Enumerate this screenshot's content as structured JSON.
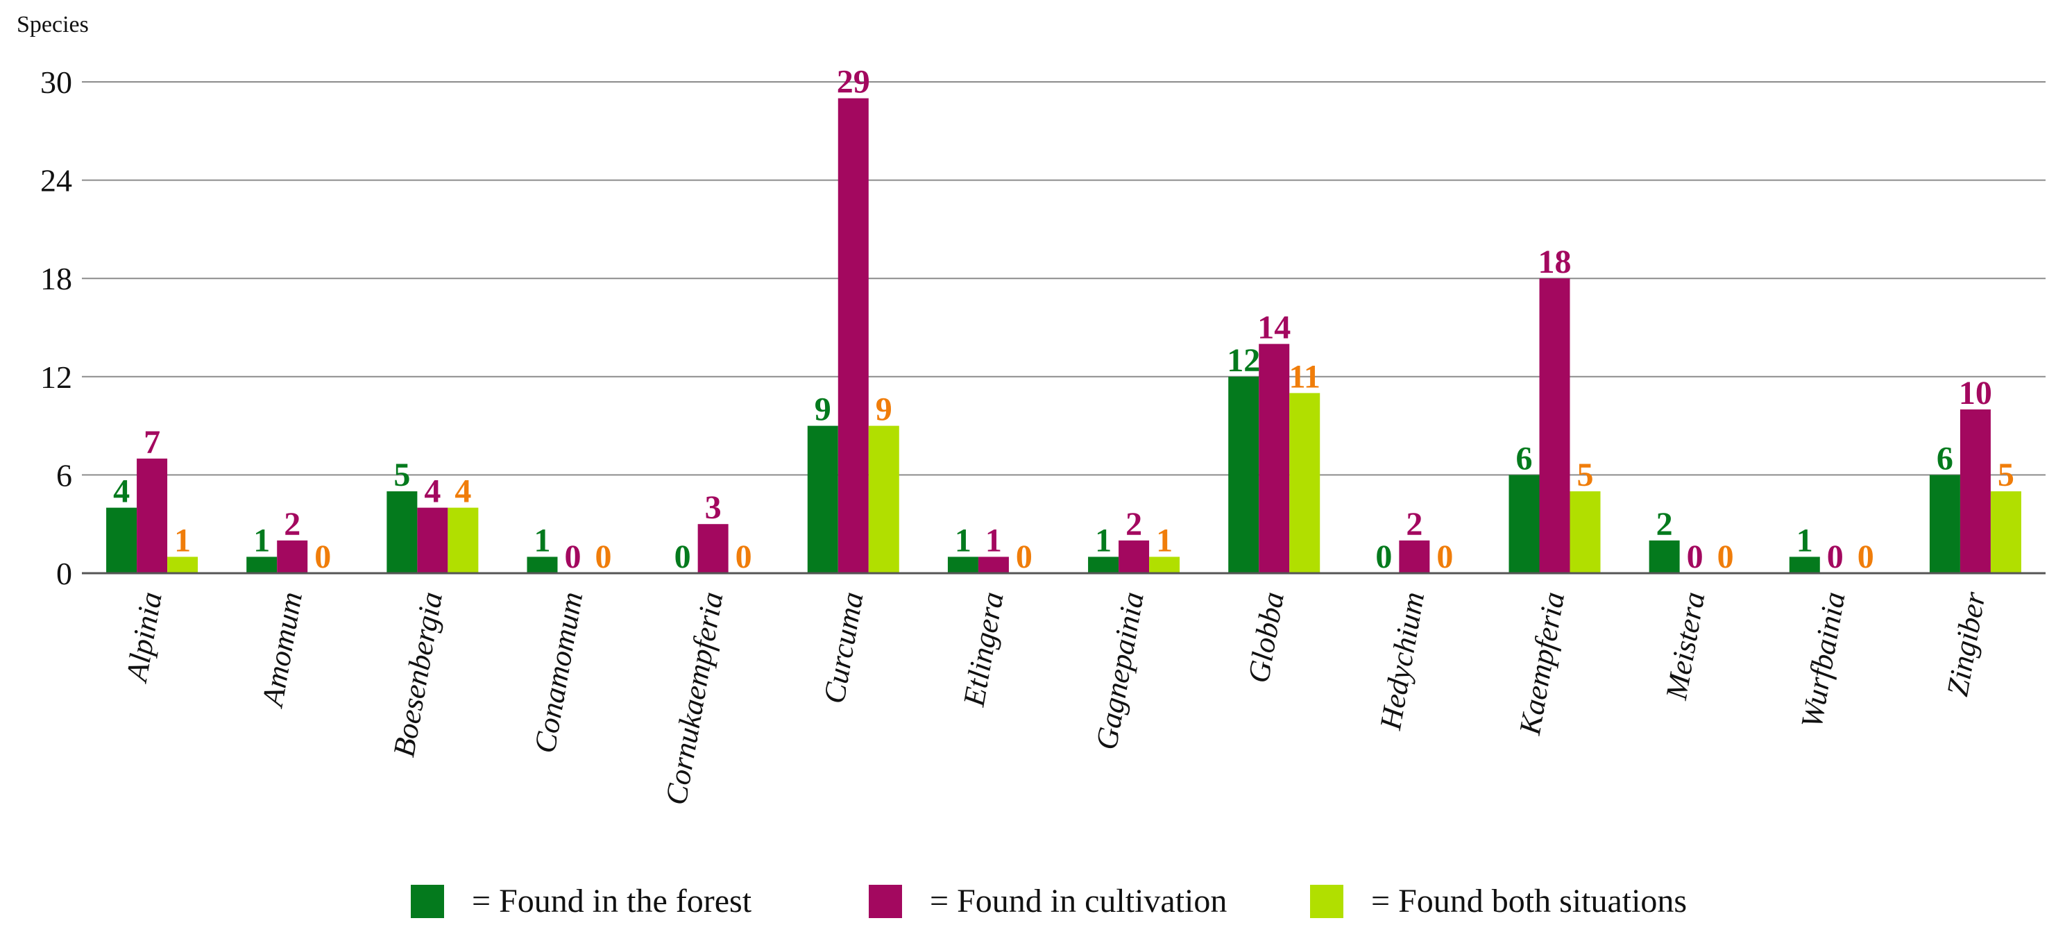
{
  "chart_data": {
    "type": "bar",
    "ylabel": "Species",
    "ylim": [
      0,
      30
    ],
    "yticks": [
      0,
      6,
      12,
      18,
      24,
      30
    ],
    "grid": true,
    "legend_position": "bottom",
    "categories": [
      "Alpinia",
      "Amomum",
      "Boesenbergia",
      "Conamomum",
      "Cornukaempferia",
      "Curcuma",
      "Etlingera",
      "Gagnepainia",
      "Globba",
      "Hedychium",
      "Kaempferia",
      "Meistera",
      "Wurfbainia",
      "Zingiber"
    ],
    "series": [
      {
        "name": "= Found in the forest",
        "color": "#047a1d",
        "label_color": "#047a1d",
        "values": [
          4,
          1,
          5,
          1,
          0,
          9,
          1,
          1,
          12,
          0,
          6,
          2,
          1,
          6
        ]
      },
      {
        "name": "= Found in cultivation",
        "color": "#a3085f",
        "label_color": "#a3085f",
        "values": [
          7,
          2,
          4,
          0,
          3,
          29,
          1,
          2,
          14,
          2,
          18,
          0,
          0,
          10
        ]
      },
      {
        "name": "= Found both situations",
        "color": "#b1df00",
        "label_color": "#f07d0a",
        "values": [
          1,
          0,
          4,
          0,
          0,
          9,
          0,
          1,
          11,
          0,
          5,
          0,
          0,
          5
        ]
      }
    ]
  }
}
